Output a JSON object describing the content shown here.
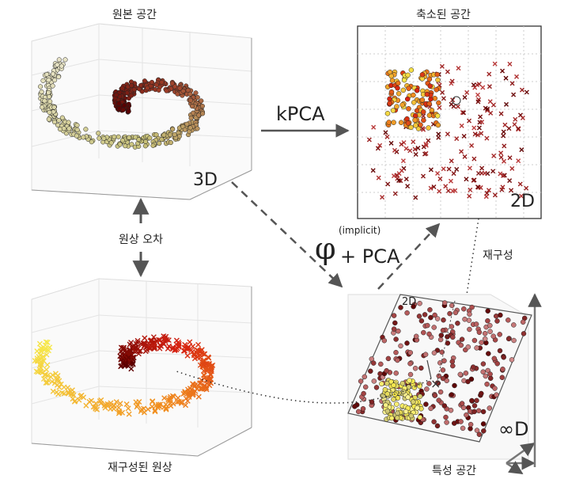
{
  "labels": {
    "original_space": "원본 공간",
    "reduced_space": "축소된 공간",
    "kpca": "kPCA",
    "label_3d": "3D",
    "label_2d": "2D",
    "preimage_error": "원상 오차",
    "phi": "φ",
    "implicit": "(implicit)",
    "plus_pca": "+ PCA",
    "reconstruction": "재구성",
    "reconstructed_preimage": "재구성된 원상",
    "feature_space": "특성 공간",
    "plane_2d": "2D",
    "infinity_d": "∞D"
  },
  "colors": {
    "arrow": "#555555",
    "dark_red": "#5a0000",
    "red": "#d62010",
    "orange": "#f08a1e",
    "yellow": "#f6e84a",
    "olive": "#c8c27a",
    "pale": "#e8e4c8"
  }
}
